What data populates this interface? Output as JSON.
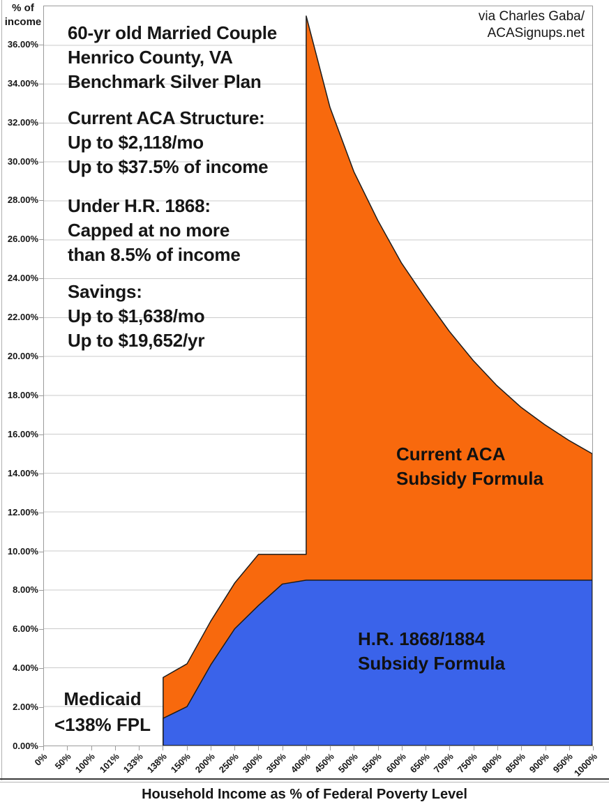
{
  "colors": {
    "current_aca": "#f8690d",
    "hr1868": "#3a63ea",
    "gridline": "#cbcbcb",
    "outline": "#1c1c1c",
    "axis": "#9b9b9b"
  },
  "chart_data": {
    "type": "area",
    "title": "60-yr old Married Couple, Henrico County, VA, Benchmark Silver Plan",
    "xlabel": "Household Income as % of Federal Poverty Level",
    "ylabel_lines": [
      "% of",
      "income"
    ],
    "ylim": [
      0,
      38
    ],
    "y_tick_step": 2,
    "grid": true,
    "legend_position": "labels drawn inside areas",
    "y_tick_labels": [
      "0.00%",
      "2.00%",
      "4.00%",
      "6.00%",
      "8.00%",
      "10.00%",
      "12.00%",
      "14.00%",
      "16.00%",
      "18.00%",
      "20.00%",
      "22.00%",
      "24.00%",
      "26.00%",
      "28.00%",
      "30.00%",
      "32.00%",
      "34.00%",
      "36.00%"
    ],
    "categories": [
      "0%",
      "50%",
      "100%",
      "101%",
      "133%",
      "138%",
      "150%",
      "200%",
      "250%",
      "300%",
      "350%",
      "400%",
      "450%",
      "500%",
      "550%",
      "600%",
      "650%",
      "700%",
      "750%",
      "800%",
      "850%",
      "900%",
      "950%",
      "1000%"
    ],
    "series": [
      {
        "name": "Current ACA Subsidy Formula",
        "color": "#f8690d",
        "points": [
          [
            "138%",
            3.5
          ],
          [
            "150%",
            4.2
          ],
          [
            "200%",
            6.4
          ],
          [
            "250%",
            8.35
          ],
          [
            "300%",
            9.83
          ],
          [
            "350%",
            9.83
          ],
          [
            "400%",
            9.83
          ],
          [
            "400%",
            37.5
          ],
          [
            "450%",
            32.8
          ],
          [
            "500%",
            29.5
          ],
          [
            "550%",
            27.0
          ],
          [
            "600%",
            24.8
          ],
          [
            "650%",
            23.0
          ],
          [
            "700%",
            21.3
          ],
          [
            "750%",
            19.8
          ],
          [
            "800%",
            18.5
          ],
          [
            "850%",
            17.4
          ],
          [
            "900%",
            16.5
          ],
          [
            "950%",
            15.7
          ],
          [
            "1000%",
            15.0
          ]
        ]
      },
      {
        "name": "H.R. 1868/1884 Subsidy Formula",
        "color": "#3a63ea",
        "points": [
          [
            "138%",
            1.4
          ],
          [
            "150%",
            2.0
          ],
          [
            "200%",
            4.15
          ],
          [
            "250%",
            6.0
          ],
          [
            "300%",
            7.2
          ],
          [
            "350%",
            8.3
          ],
          [
            "400%",
            8.5
          ],
          [
            "450%",
            8.5
          ],
          [
            "500%",
            8.5
          ],
          [
            "550%",
            8.5
          ],
          [
            "600%",
            8.5
          ],
          [
            "650%",
            8.5
          ],
          [
            "700%",
            8.5
          ],
          [
            "750%",
            8.5
          ],
          [
            "800%",
            8.5
          ],
          [
            "850%",
            8.5
          ],
          [
            "900%",
            8.5
          ],
          [
            "950%",
            8.5
          ],
          [
            "1000%",
            8.5
          ]
        ]
      }
    ],
    "area_labels": [
      {
        "series": "Current ACA Subsidy Formula",
        "lines": [
          "Current ACA",
          "Subsidy Formula"
        ]
      },
      {
        "series": "H.R. 1868/1884 Subsidy Formula",
        "lines": [
          "H.R. 1868/1884",
          "Subsidy Formula"
        ]
      }
    ],
    "annotations": [
      {
        "id": "info-1",
        "lines": [
          "60-yr old Married Couple",
          "Henrico County, VA",
          "Benchmark Silver Plan"
        ]
      },
      {
        "id": "info-2",
        "lines": [
          "Current ACA Structure:",
          "Up to $2,118/mo",
          "Up to $37.5% of income"
        ]
      },
      {
        "id": "info-3",
        "lines": [
          "Under H.R. 1868:",
          "Capped at no more",
          "than 8.5% of income"
        ]
      },
      {
        "id": "info-4",
        "lines": [
          "Savings:",
          "Up to $1,638/mo",
          "Up to $19,652/yr"
        ]
      },
      {
        "id": "medicaid",
        "lines": [
          "Medicaid",
          "<138% FPL"
        ]
      }
    ],
    "attribution_lines": [
      "via Charles Gaba/",
      "ACASignups.net"
    ]
  }
}
